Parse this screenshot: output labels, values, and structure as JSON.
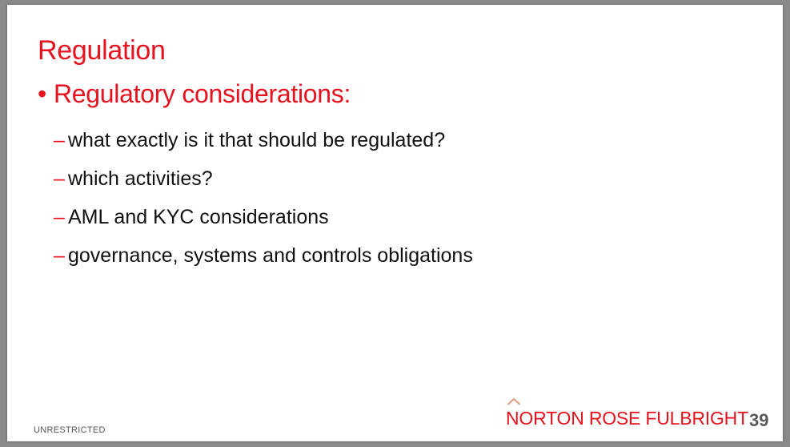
{
  "slide": {
    "title": "Regulation",
    "bullet": {
      "marker": "•",
      "text": "Regulatory considerations:"
    },
    "sub_bullets": [
      {
        "marker": "–",
        "text": "what exactly is it that should be regulated?"
      },
      {
        "marker": "–",
        "text": "which activities?"
      },
      {
        "marker": "–",
        "text": "AML and KYC considerations"
      },
      {
        "marker": "–",
        "text": "governance, systems and controls obligations"
      }
    ],
    "classification": "UNRESTRICTED",
    "logo_text": "NORTON ROSE FULBRIGHT",
    "logo_icon": "chevron-mark-icon",
    "page_number": "39"
  },
  "colors": {
    "accent": "#e8121f",
    "body_text": "#111111",
    "page_number": "#5a5a5a",
    "logo_mark": "#d9a382"
  }
}
